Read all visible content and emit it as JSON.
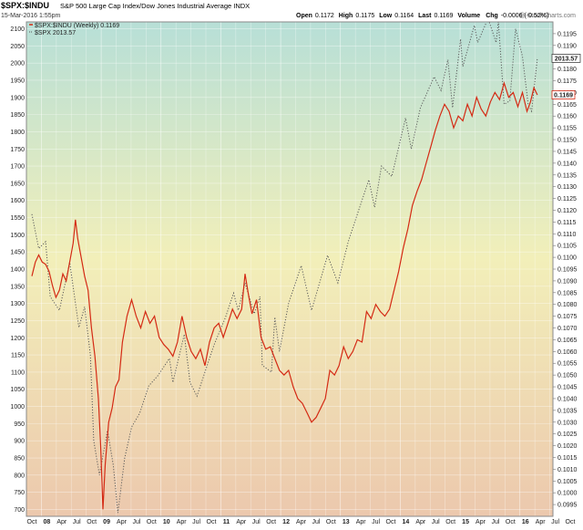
{
  "header": {
    "symbol": "$SPX:$INDU",
    "description": "S&P 500 Large Cap Index/Dow Jones Industrial Average INDX",
    "date_line": "15-Mar-2016 1:55pm",
    "watermark": "@ StockCharts.com",
    "quote": [
      {
        "label": "Open",
        "value": "0.1172"
      },
      {
        "label": "High",
        "value": "0.1175"
      },
      {
        "label": "Low",
        "value": "0.1164"
      },
      {
        "label": "Last",
        "value": "0.1169"
      },
      {
        "label": "Volume",
        "value": ""
      },
      {
        "label": "Chg",
        "value": "-0.0006 (-0.52%)"
      }
    ]
  },
  "legend": [
    {
      "text": "$SPX:$INDU (Weekly) 0.1169",
      "style": "solid",
      "color": "#d42a14"
    },
    {
      "text": "$SPX 2013.57",
      "style": "dotted",
      "color": "#555555"
    }
  ],
  "badges": {
    "right_spx": "2013.57",
    "right_ratio": "0.1169"
  },
  "chart_data": {
    "type": "line",
    "x_tick_labels": [
      "Oct",
      "08",
      "Apr",
      "Jul",
      "Oct",
      "09",
      "Apr",
      "Jul",
      "Oct",
      "10",
      "Apr",
      "Jul",
      "Oct",
      "11",
      "Apr",
      "Jul",
      "Oct",
      "12",
      "Apr",
      "Jul",
      "Oct",
      "13",
      "Apr",
      "Jul",
      "Oct",
      "14",
      "Apr",
      "Jul",
      "Oct",
      "15",
      "Apr",
      "Jul",
      "Oct",
      "16",
      "Apr",
      "Jul",
      "Oct"
    ],
    "bold_x_labels": [
      "08",
      "09",
      "10",
      "11",
      "12",
      "13",
      "14",
      "15",
      "16"
    ],
    "left_axis": {
      "range": [
        680,
        2120
      ],
      "ticks": [
        700,
        750,
        800,
        850,
        900,
        950,
        1000,
        1050,
        1100,
        1150,
        1200,
        1250,
        1300,
        1350,
        1400,
        1450,
        1500,
        1550,
        1600,
        1650,
        1700,
        1750,
        1800,
        1850,
        1900,
        1950,
        2000,
        2050,
        2100
      ]
    },
    "right_axis": {
      "range": [
        0.099,
        0.12
      ],
      "ticks": [
        "0.0995",
        "0.1000",
        "0.1005",
        "0.1010",
        "0.1015",
        "0.1020",
        "0.1025",
        "0.1030",
        "0.1035",
        "0.1040",
        "0.1045",
        "0.1050",
        "0.1055",
        "0.1060",
        "0.1065",
        "0.1070",
        "0.1075",
        "0.1080",
        "0.1085",
        "0.1090",
        "0.1095",
        "0.1100",
        "0.1105",
        "0.1110",
        "0.1115",
        "0.1120",
        "0.1125",
        "0.1130",
        "0.1135",
        "0.1140",
        "0.1145",
        "0.1150",
        "0.1155",
        "0.1160",
        "0.1165",
        "0.1170",
        "0.1175",
        "0.1180",
        "0.1185",
        "0.1190",
        "0.1195"
      ]
    },
    "grid": true,
    "legend_position": "top-left",
    "series": [
      {
        "name": "$SPX:$INDU (Weekly)",
        "axis": "right",
        "color": "#d42a14",
        "style": "solid",
        "points": [
          [
            "2007-10-01",
            0.1092
          ],
          [
            "2007-10-22",
            0.1098
          ],
          [
            "2007-11-12",
            0.1101
          ],
          [
            "2007-12-03",
            0.1098
          ],
          [
            "2007-12-24",
            0.1097
          ],
          [
            "2008-01-14",
            0.1094
          ],
          [
            "2008-02-04",
            0.1088
          ],
          [
            "2008-02-25",
            0.1083
          ],
          [
            "2008-03-17",
            0.1086
          ],
          [
            "2008-04-07",
            0.1093
          ],
          [
            "2008-04-28",
            0.109
          ],
          [
            "2008-05-19",
            0.1098
          ],
          [
            "2008-06-09",
            0.1106
          ],
          [
            "2008-06-23",
            0.1116
          ],
          [
            "2008-07-07",
            0.1108
          ],
          [
            "2008-07-28",
            0.11
          ],
          [
            "2008-08-18",
            0.1092
          ],
          [
            "2008-09-08",
            0.1086
          ],
          [
            "2008-09-29",
            0.107
          ],
          [
            "2008-10-20",
            0.1058
          ],
          [
            "2008-11-10",
            0.104
          ],
          [
            "2008-11-24",
            0.102
          ],
          [
            "2008-12-08",
            0.0993
          ],
          [
            "2008-12-22",
            0.1012
          ],
          [
            "2009-01-12",
            0.103
          ],
          [
            "2009-02-02",
            0.1036
          ],
          [
            "2009-02-23",
            0.1045
          ],
          [
            "2009-03-16",
            0.1048
          ],
          [
            "2009-04-06",
            0.1064
          ],
          [
            "2009-05-04",
            0.1075
          ],
          [
            "2009-06-01",
            0.1082
          ],
          [
            "2009-06-29",
            0.1075
          ],
          [
            "2009-07-27",
            0.107
          ],
          [
            "2009-08-24",
            0.1077
          ],
          [
            "2009-09-21",
            0.1072
          ],
          [
            "2009-10-19",
            0.1075
          ],
          [
            "2009-11-16",
            0.1066
          ],
          [
            "2009-12-14",
            0.1063
          ],
          [
            "2010-01-11",
            0.1061
          ],
          [
            "2010-02-08",
            0.1058
          ],
          [
            "2010-03-08",
            0.1064
          ],
          [
            "2010-04-05",
            0.1075
          ],
          [
            "2010-05-03",
            0.1066
          ],
          [
            "2010-05-31",
            0.106
          ],
          [
            "2010-06-28",
            0.1057
          ],
          [
            "2010-07-26",
            0.1061
          ],
          [
            "2010-08-23",
            0.1054
          ],
          [
            "2010-09-20",
            0.1064
          ],
          [
            "2010-10-18",
            0.107
          ],
          [
            "2010-11-15",
            0.1072
          ],
          [
            "2010-12-13",
            0.1066
          ],
          [
            "2011-01-10",
            0.1072
          ],
          [
            "2011-02-07",
            0.1078
          ],
          [
            "2011-03-07",
            0.1074
          ],
          [
            "2011-04-04",
            0.1078
          ],
          [
            "2011-04-25",
            0.1093
          ],
          [
            "2011-05-16",
            0.1084
          ],
          [
            "2011-06-06",
            0.1076
          ],
          [
            "2011-07-04",
            0.1082
          ],
          [
            "2011-08-01",
            0.1066
          ],
          [
            "2011-08-29",
            0.1061
          ],
          [
            "2011-09-26",
            0.1062
          ],
          [
            "2011-10-24",
            0.1057
          ],
          [
            "2011-11-21",
            0.1052
          ],
          [
            "2011-12-19",
            0.105
          ],
          [
            "2012-01-16",
            0.1052
          ],
          [
            "2012-02-13",
            0.1045
          ],
          [
            "2012-03-12",
            0.104
          ],
          [
            "2012-04-09",
            0.1038
          ],
          [
            "2012-05-07",
            0.1034
          ],
          [
            "2012-06-04",
            0.103
          ],
          [
            "2012-07-02",
            0.1032
          ],
          [
            "2012-07-30",
            0.1036
          ],
          [
            "2012-08-27",
            0.104
          ],
          [
            "2012-09-24",
            0.1052
          ],
          [
            "2012-10-22",
            0.105
          ],
          [
            "2012-11-19",
            0.1054
          ],
          [
            "2012-12-17",
            0.1062
          ],
          [
            "2013-01-14",
            0.1057
          ],
          [
            "2013-02-11",
            0.106
          ],
          [
            "2013-03-11",
            0.1065
          ],
          [
            "2013-04-08",
            0.1064
          ],
          [
            "2013-05-06",
            0.1077
          ],
          [
            "2013-06-03",
            0.1074
          ],
          [
            "2013-07-01",
            0.108
          ],
          [
            "2013-07-29",
            0.1077
          ],
          [
            "2013-08-26",
            0.1075
          ],
          [
            "2013-09-23",
            0.1078
          ],
          [
            "2013-10-21",
            0.1086
          ],
          [
            "2013-11-18",
            0.1094
          ],
          [
            "2013-12-16",
            0.1104
          ],
          [
            "2014-01-13",
            0.1112
          ],
          [
            "2014-02-10",
            0.1122
          ],
          [
            "2014-03-10",
            0.1128
          ],
          [
            "2014-04-07",
            0.1133
          ],
          [
            "2014-05-05",
            0.114
          ],
          [
            "2014-06-02",
            0.1147
          ],
          [
            "2014-06-30",
            0.1154
          ],
          [
            "2014-07-28",
            0.116
          ],
          [
            "2014-08-25",
            0.1165
          ],
          [
            "2014-09-22",
            0.1162
          ],
          [
            "2014-10-20",
            0.1155
          ],
          [
            "2014-11-17",
            0.116
          ],
          [
            "2014-12-15",
            0.1158
          ],
          [
            "2015-01-12",
            0.1165
          ],
          [
            "2015-02-09",
            0.116
          ],
          [
            "2015-03-09",
            0.1168
          ],
          [
            "2015-04-06",
            0.1163
          ],
          [
            "2015-05-04",
            0.116
          ],
          [
            "2015-06-01",
            0.1166
          ],
          [
            "2015-06-29",
            0.117
          ],
          [
            "2015-07-27",
            0.1167
          ],
          [
            "2015-08-24",
            0.1174
          ],
          [
            "2015-09-21",
            0.1168
          ],
          [
            "2015-10-19",
            0.117
          ],
          [
            "2015-11-16",
            0.1164
          ],
          [
            "2015-12-14",
            0.117
          ],
          [
            "2016-01-11",
            0.1162
          ],
          [
            "2016-02-01",
            0.1166
          ],
          [
            "2016-02-22",
            0.1172
          ],
          [
            "2016-03-14",
            0.1169
          ]
        ]
      },
      {
        "name": "$SPX",
        "axis": "left",
        "color": "#5a5a5a",
        "style": "dotted",
        "points": [
          [
            "2007-10-01",
            1560
          ],
          [
            "2007-11-12",
            1460
          ],
          [
            "2007-12-24",
            1480
          ],
          [
            "2008-01-21",
            1320
          ],
          [
            "2008-03-17",
            1280
          ],
          [
            "2008-05-19",
            1420
          ],
          [
            "2008-07-14",
            1230
          ],
          [
            "2008-08-18",
            1290
          ],
          [
            "2008-09-22",
            1150
          ],
          [
            "2008-10-13",
            900
          ],
          [
            "2008-11-17",
            800
          ],
          [
            "2009-01-05",
            930
          ],
          [
            "2009-02-09",
            830
          ],
          [
            "2009-03-09",
            690
          ],
          [
            "2009-04-20",
            850
          ],
          [
            "2009-06-01",
            940
          ],
          [
            "2009-07-20",
            980
          ],
          [
            "2009-09-14",
            1060
          ],
          [
            "2009-11-09",
            1090
          ],
          [
            "2010-01-18",
            1140
          ],
          [
            "2010-02-08",
            1070
          ],
          [
            "2010-04-19",
            1210
          ],
          [
            "2010-05-24",
            1070
          ],
          [
            "2010-07-05",
            1030
          ],
          [
            "2010-08-16",
            1090
          ],
          [
            "2010-10-18",
            1180
          ],
          [
            "2010-12-27",
            1260
          ],
          [
            "2011-02-14",
            1330
          ],
          [
            "2011-03-14",
            1280
          ],
          [
            "2011-04-25",
            1360
          ],
          [
            "2011-06-20",
            1270
          ],
          [
            "2011-07-25",
            1320
          ],
          [
            "2011-08-08",
            1120
          ],
          [
            "2011-10-03",
            1100
          ],
          [
            "2011-10-24",
            1260
          ],
          [
            "2011-11-21",
            1160
          ],
          [
            "2012-01-16",
            1300
          ],
          [
            "2012-04-02",
            1410
          ],
          [
            "2012-06-04",
            1280
          ],
          [
            "2012-09-10",
            1440
          ],
          [
            "2012-11-12",
            1360
          ],
          [
            "2013-01-14",
            1480
          ],
          [
            "2013-03-11",
            1560
          ],
          [
            "2013-05-20",
            1660
          ],
          [
            "2013-06-24",
            1580
          ],
          [
            "2013-08-05",
            1700
          ],
          [
            "2013-10-07",
            1670
          ],
          [
            "2013-12-30",
            1840
          ],
          [
            "2014-02-03",
            1750
          ],
          [
            "2014-03-31",
            1870
          ],
          [
            "2014-06-23",
            1960
          ],
          [
            "2014-08-04",
            1920
          ],
          [
            "2014-09-15",
            2010
          ],
          [
            "2014-10-13",
            1870
          ],
          [
            "2014-12-01",
            2070
          ],
          [
            "2014-12-15",
            1990
          ],
          [
            "2015-02-23",
            2110
          ],
          [
            "2015-03-16",
            2060
          ],
          [
            "2015-05-18",
            2130
          ],
          [
            "2015-07-06",
            2060
          ],
          [
            "2015-07-20",
            2120
          ],
          [
            "2015-08-24",
            1880
          ],
          [
            "2015-09-28",
            1890
          ],
          [
            "2015-11-02",
            2100
          ],
          [
            "2015-12-14",
            2020
          ],
          [
            "2016-01-18",
            1880
          ],
          [
            "2016-02-08",
            1860
          ],
          [
            "2016-03-14",
            2014
          ]
        ]
      }
    ]
  }
}
